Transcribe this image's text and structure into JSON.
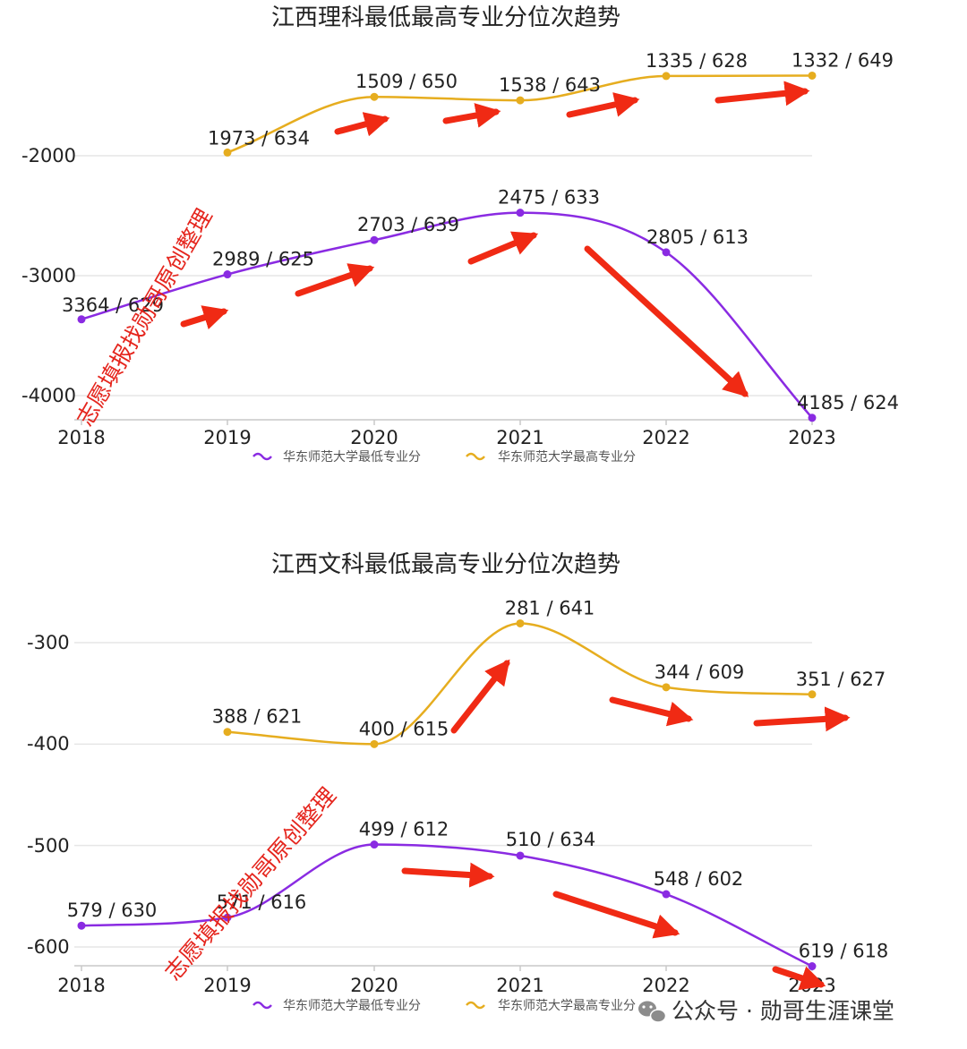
{
  "chart_data": [
    {
      "type": "line",
      "title": "江西理科最低最高专业分位次趋势",
      "categories": [
        "2018",
        "2019",
        "2020",
        "2021",
        "2022",
        "2023"
      ],
      "y_axis_ticks": [
        "-2000",
        "-3000",
        "-4000"
      ],
      "series": [
        {
          "name": "华东师范大学最低专业分",
          "color": "#8a2be2",
          "values": [
            -3364,
            -2989,
            -2703,
            -2475,
            -2805,
            -4185
          ],
          "labels": [
            "3364 / 629",
            "2989 / 625",
            "2703 / 639",
            "2475 / 633",
            "2805 / 613",
            "4185 / 624"
          ]
        },
        {
          "name": "华东师范大学最高专业分",
          "color": "#e6ad1f",
          "values": [
            null,
            -1973,
            -1509,
            -1538,
            -1335,
            -1332
          ],
          "labels": [
            "",
            "1973 / 634",
            "1509 / 650",
            "1538 / 643",
            "1335 / 628",
            "1332 / 649"
          ]
        }
      ],
      "watermark": "志愿填报找勋哥原创整理"
    },
    {
      "type": "line",
      "title": "江西文科最低最高专业分位次趋势",
      "categories": [
        "2018",
        "2019",
        "2020",
        "2021",
        "2022",
        "2023"
      ],
      "y_axis_ticks": [
        "-300",
        "-400",
        "-500",
        "-600"
      ],
      "series": [
        {
          "name": "华东师范大学最低专业分",
          "color": "#8a2be2",
          "values": [
            -579,
            -571,
            -499,
            -510,
            -548,
            -619
          ],
          "labels": [
            "579 / 630",
            "571 / 616",
            "499 / 612",
            "510 / 634",
            "548 / 602",
            "619 / 618"
          ]
        },
        {
          "name": "华东师范大学最高专业分",
          "color": "#e6ad1f",
          "values": [
            null,
            -388,
            -400,
            -281,
            -344,
            -351
          ],
          "labels": [
            "",
            "388 / 621",
            "400 / 615",
            "281 / 641",
            "344 / 609",
            "351 / 627"
          ]
        }
      ],
      "watermark": "志愿填报找勋哥原创整理"
    }
  ],
  "footer": {
    "text": "公众号 · 勋哥生涯课堂",
    "icon": "wechat-icon"
  },
  "colors": {
    "arrow": "#f02a14",
    "watermark": "#e5251d",
    "grid": "#e6e6e6"
  }
}
